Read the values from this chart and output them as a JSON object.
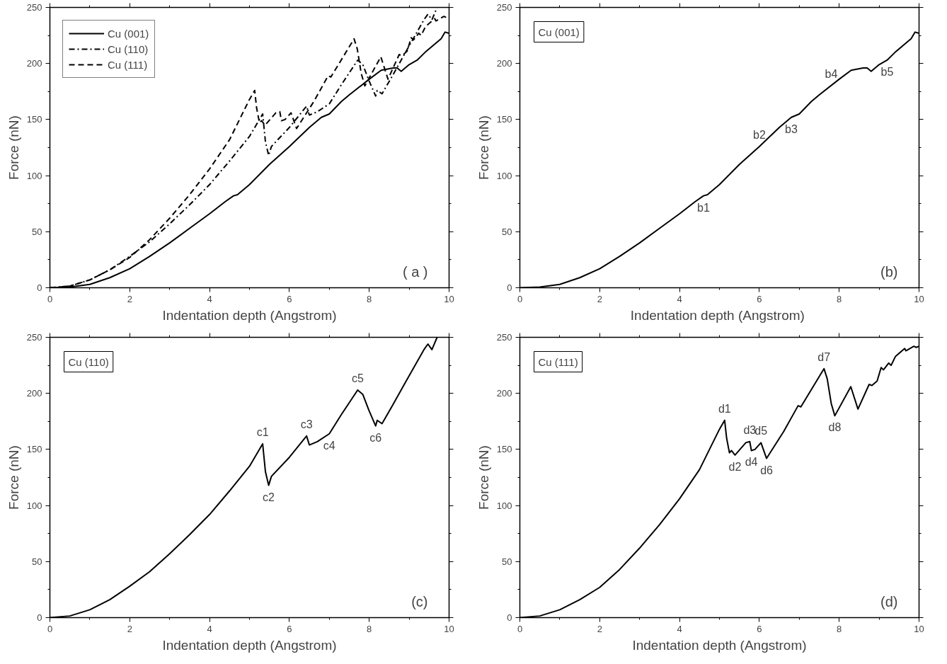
{
  "chart_data": [
    {
      "type": "line",
      "xlabel": "Indentation depth (Angstrom)",
      "ylabel": "Force (nN)",
      "xlim": [
        0,
        10
      ],
      "ylim": [
        0,
        250
      ],
      "xticks": [
        0,
        2,
        4,
        6,
        8,
        10
      ],
      "yticks": [
        0,
        50,
        100,
        150,
        200,
        250
      ],
      "grid": false,
      "legend": "top left",
      "annotations": [
        "( a )"
      ],
      "series": [
        {
          "name": "Cu (001)",
          "color": "#000000",
          "line_style": "solid",
          "x": [
            0,
            0.5,
            1,
            1.5,
            2,
            2.5,
            3,
            3.5,
            4,
            4.4,
            4.6,
            4.7,
            5,
            5.5,
            6,
            6.5,
            6.8,
            7,
            7.3,
            7.5,
            8,
            8.3,
            8.6,
            8.7,
            8.8,
            9,
            9.2,
            9.4,
            9.6,
            9.8,
            9.9,
            10
          ],
          "values": [
            0,
            0.6,
            3,
            9,
            17,
            28,
            40,
            53,
            66,
            77,
            82,
            83,
            92,
            110,
            126,
            143,
            152,
            155,
            166,
            172,
            186,
            194,
            196,
            196,
            193,
            199,
            203,
            210,
            216,
            222,
            228,
            227
          ]
        },
        {
          "name": "Cu (110)",
          "color": "#000000",
          "line_style": "dashdot",
          "x": [
            0,
            0.5,
            1,
            1.5,
            2,
            2.5,
            3,
            3.5,
            4,
            4.5,
            5,
            5.33,
            5.4,
            5.44,
            5.48,
            5.55,
            6,
            6.43,
            6.5,
            6.7,
            7.0,
            7.3,
            7.71,
            7.84,
            7.99,
            8.16,
            8.2,
            8.32,
            8.58,
            8.91,
            9.37,
            9.47,
            9.57,
            9.7
          ],
          "values": [
            0,
            1.5,
            7,
            16,
            28,
            41,
            57,
            74,
            92,
            113,
            135,
            155,
            130,
            124,
            118,
            126,
            143,
            162,
            154,
            157,
            164,
            181,
            203,
            199,
            185,
            171,
            176,
            173,
            189,
            210,
            239,
            244,
            239,
            250
          ]
        },
        {
          "name": "Cu (111)",
          "color": "#000000",
          "line_style": "dashed",
          "x": [
            0,
            0.5,
            1,
            1.5,
            2,
            2.5,
            3,
            3.5,
            4,
            4.5,
            5,
            5.13,
            5.18,
            5.25,
            5.3,
            5.39,
            5.66,
            5.76,
            5.8,
            5.89,
            6.04,
            6.18,
            6.61,
            6.97,
            7.04,
            7.62,
            7.7,
            7.8,
            7.89,
            8.29,
            8.47,
            8.75,
            8.82,
            8.95,
            9.05,
            9.11,
            9.24,
            9.3,
            9.41,
            9.64,
            9.67,
            9.87,
            9.93,
            10
          ],
          "values": [
            0,
            1.5,
            7,
            16,
            27,
            43,
            62,
            83,
            106,
            132,
            168,
            176,
            160,
            147,
            149,
            145,
            156,
            157,
            149,
            150,
            156,
            142,
            166,
            189,
            188,
            222,
            213,
            191,
            180,
            206,
            186,
            208,
            207,
            211,
            223,
            221,
            227,
            225,
            233,
            240,
            238,
            242,
            241,
            242
          ]
        }
      ]
    },
    {
      "type": "line",
      "xlabel": "Indentation depth  (Angstrom)",
      "ylabel": "Force (nN)",
      "xlim": [
        0,
        10
      ],
      "ylim": [
        0,
        250
      ],
      "xticks": [
        0,
        2,
        4,
        6,
        8,
        10
      ],
      "yticks": [
        0,
        50,
        100,
        150,
        200,
        250
      ],
      "grid": false,
      "annotations": [
        "Cu (001)",
        "(b)",
        {
          "text": "b1",
          "x": 4.6,
          "y": 82
        },
        {
          "text": "b2",
          "x": 6,
          "y": 126
        },
        {
          "text": "b3",
          "x": 6.8,
          "y": 152
        },
        {
          "text": "b4",
          "x": 7.8,
          "y": 180
        },
        {
          "text": "b5",
          "x": 9.2,
          "y": 203
        }
      ],
      "series": [
        {
          "color": "#000000",
          "line_style": "solid",
          "x": [
            0,
            0.5,
            1,
            1.5,
            2,
            2.5,
            3,
            3.5,
            4,
            4.4,
            4.6,
            4.7,
            5,
            5.5,
            6,
            6.5,
            6.8,
            7,
            7.3,
            7.5,
            8,
            8.3,
            8.6,
            8.7,
            8.8,
            9,
            9.2,
            9.4,
            9.6,
            9.8,
            9.9,
            10
          ],
          "values": [
            0,
            0.6,
            3,
            9,
            17,
            28,
            40,
            53,
            66,
            77,
            82,
            83,
            92,
            110,
            126,
            143,
            152,
            155,
            166,
            172,
            186,
            194,
            196,
            196,
            193,
            199,
            203,
            210,
            216,
            222,
            228,
            227
          ]
        }
      ]
    },
    {
      "type": "line",
      "xlabel": "Indentation depth (Angstrom)",
      "ylabel": "Force (nN)",
      "xlim": [
        0,
        10
      ],
      "ylim": [
        0,
        250
      ],
      "xticks": [
        0,
        2,
        4,
        6,
        8,
        10
      ],
      "yticks": [
        0,
        50,
        100,
        150,
        200,
        250
      ],
      "grid": false,
      "annotations": [
        "Cu (110)",
        "(c)",
        {
          "text": "c1",
          "x": 5.33,
          "y": 155
        },
        {
          "text": "c2",
          "x": 5.48,
          "y": 118
        },
        {
          "text": "c3",
          "x": 6.43,
          "y": 162
        },
        {
          "text": "c4",
          "x": 7.0,
          "y": 164
        },
        {
          "text": "c5",
          "x": 7.71,
          "y": 203
        },
        {
          "text": "c6",
          "x": 8.16,
          "y": 171
        }
      ],
      "series": [
        {
          "color": "#000000",
          "line_style": "solid",
          "x": [
            0,
            0.5,
            1,
            1.5,
            2,
            2.5,
            3,
            3.5,
            4,
            4.5,
            5,
            5.33,
            5.4,
            5.44,
            5.48,
            5.55,
            6,
            6.43,
            6.5,
            6.7,
            7.0,
            7.3,
            7.71,
            7.84,
            7.99,
            8.16,
            8.2,
            8.32,
            8.58,
            8.91,
            9.37,
            9.47,
            9.57,
            9.7
          ],
          "values": [
            0,
            1.5,
            7,
            16,
            28,
            41,
            57,
            74,
            92,
            113,
            135,
            155,
            130,
            124,
            118,
            126,
            143,
            162,
            154,
            157,
            164,
            181,
            203,
            199,
            185,
            171,
            176,
            173,
            189,
            210,
            239,
            244,
            239,
            250
          ]
        }
      ]
    },
    {
      "type": "line",
      "xlabel": "Indentation depth (Angstrom)",
      "ylabel": "Force (nN)",
      "xlim": [
        0,
        10
      ],
      "ylim": [
        0,
        250
      ],
      "xticks": [
        0,
        2,
        4,
        6,
        8,
        10
      ],
      "yticks": [
        0,
        50,
        100,
        150,
        200,
        250
      ],
      "grid": false,
      "annotations": [
        "Cu (111)",
        "(d)",
        {
          "text": "d1",
          "x": 5.13,
          "y": 176
        },
        {
          "text": "d2",
          "x": 5.39,
          "y": 145
        },
        {
          "text": "d3",
          "x": 5.76,
          "y": 157
        },
        {
          "text": "d4",
          "x": 5.8,
          "y": 149
        },
        {
          "text": "d5",
          "x": 6.04,
          "y": 156
        },
        {
          "text": "d6",
          "x": 6.18,
          "y": 142
        },
        {
          "text": "d7",
          "x": 7.62,
          "y": 222
        },
        {
          "text": "d8",
          "x": 7.89,
          "y": 180
        }
      ],
      "series": [
        {
          "color": "#000000",
          "line_style": "solid",
          "x": [
            0,
            0.5,
            1,
            1.5,
            2,
            2.5,
            3,
            3.5,
            4,
            4.5,
            5,
            5.13,
            5.18,
            5.25,
            5.3,
            5.39,
            5.66,
            5.76,
            5.8,
            5.89,
            6.04,
            6.18,
            6.61,
            6.97,
            7.04,
            7.62,
            7.7,
            7.8,
            7.89,
            8.29,
            8.47,
            8.75,
            8.82,
            8.95,
            9.05,
            9.11,
            9.24,
            9.3,
            9.41,
            9.64,
            9.67,
            9.87,
            9.93,
            10
          ],
          "values": [
            0,
            1.5,
            7,
            16,
            27,
            43,
            62,
            83,
            106,
            132,
            168,
            176,
            160,
            147,
            149,
            145,
            156,
            157,
            149,
            150,
            156,
            142,
            166,
            189,
            188,
            222,
            213,
            191,
            180,
            206,
            186,
            208,
            207,
            211,
            223,
            221,
            227,
            225,
            233,
            240,
            238,
            242,
            241,
            242
          ]
        }
      ]
    }
  ]
}
